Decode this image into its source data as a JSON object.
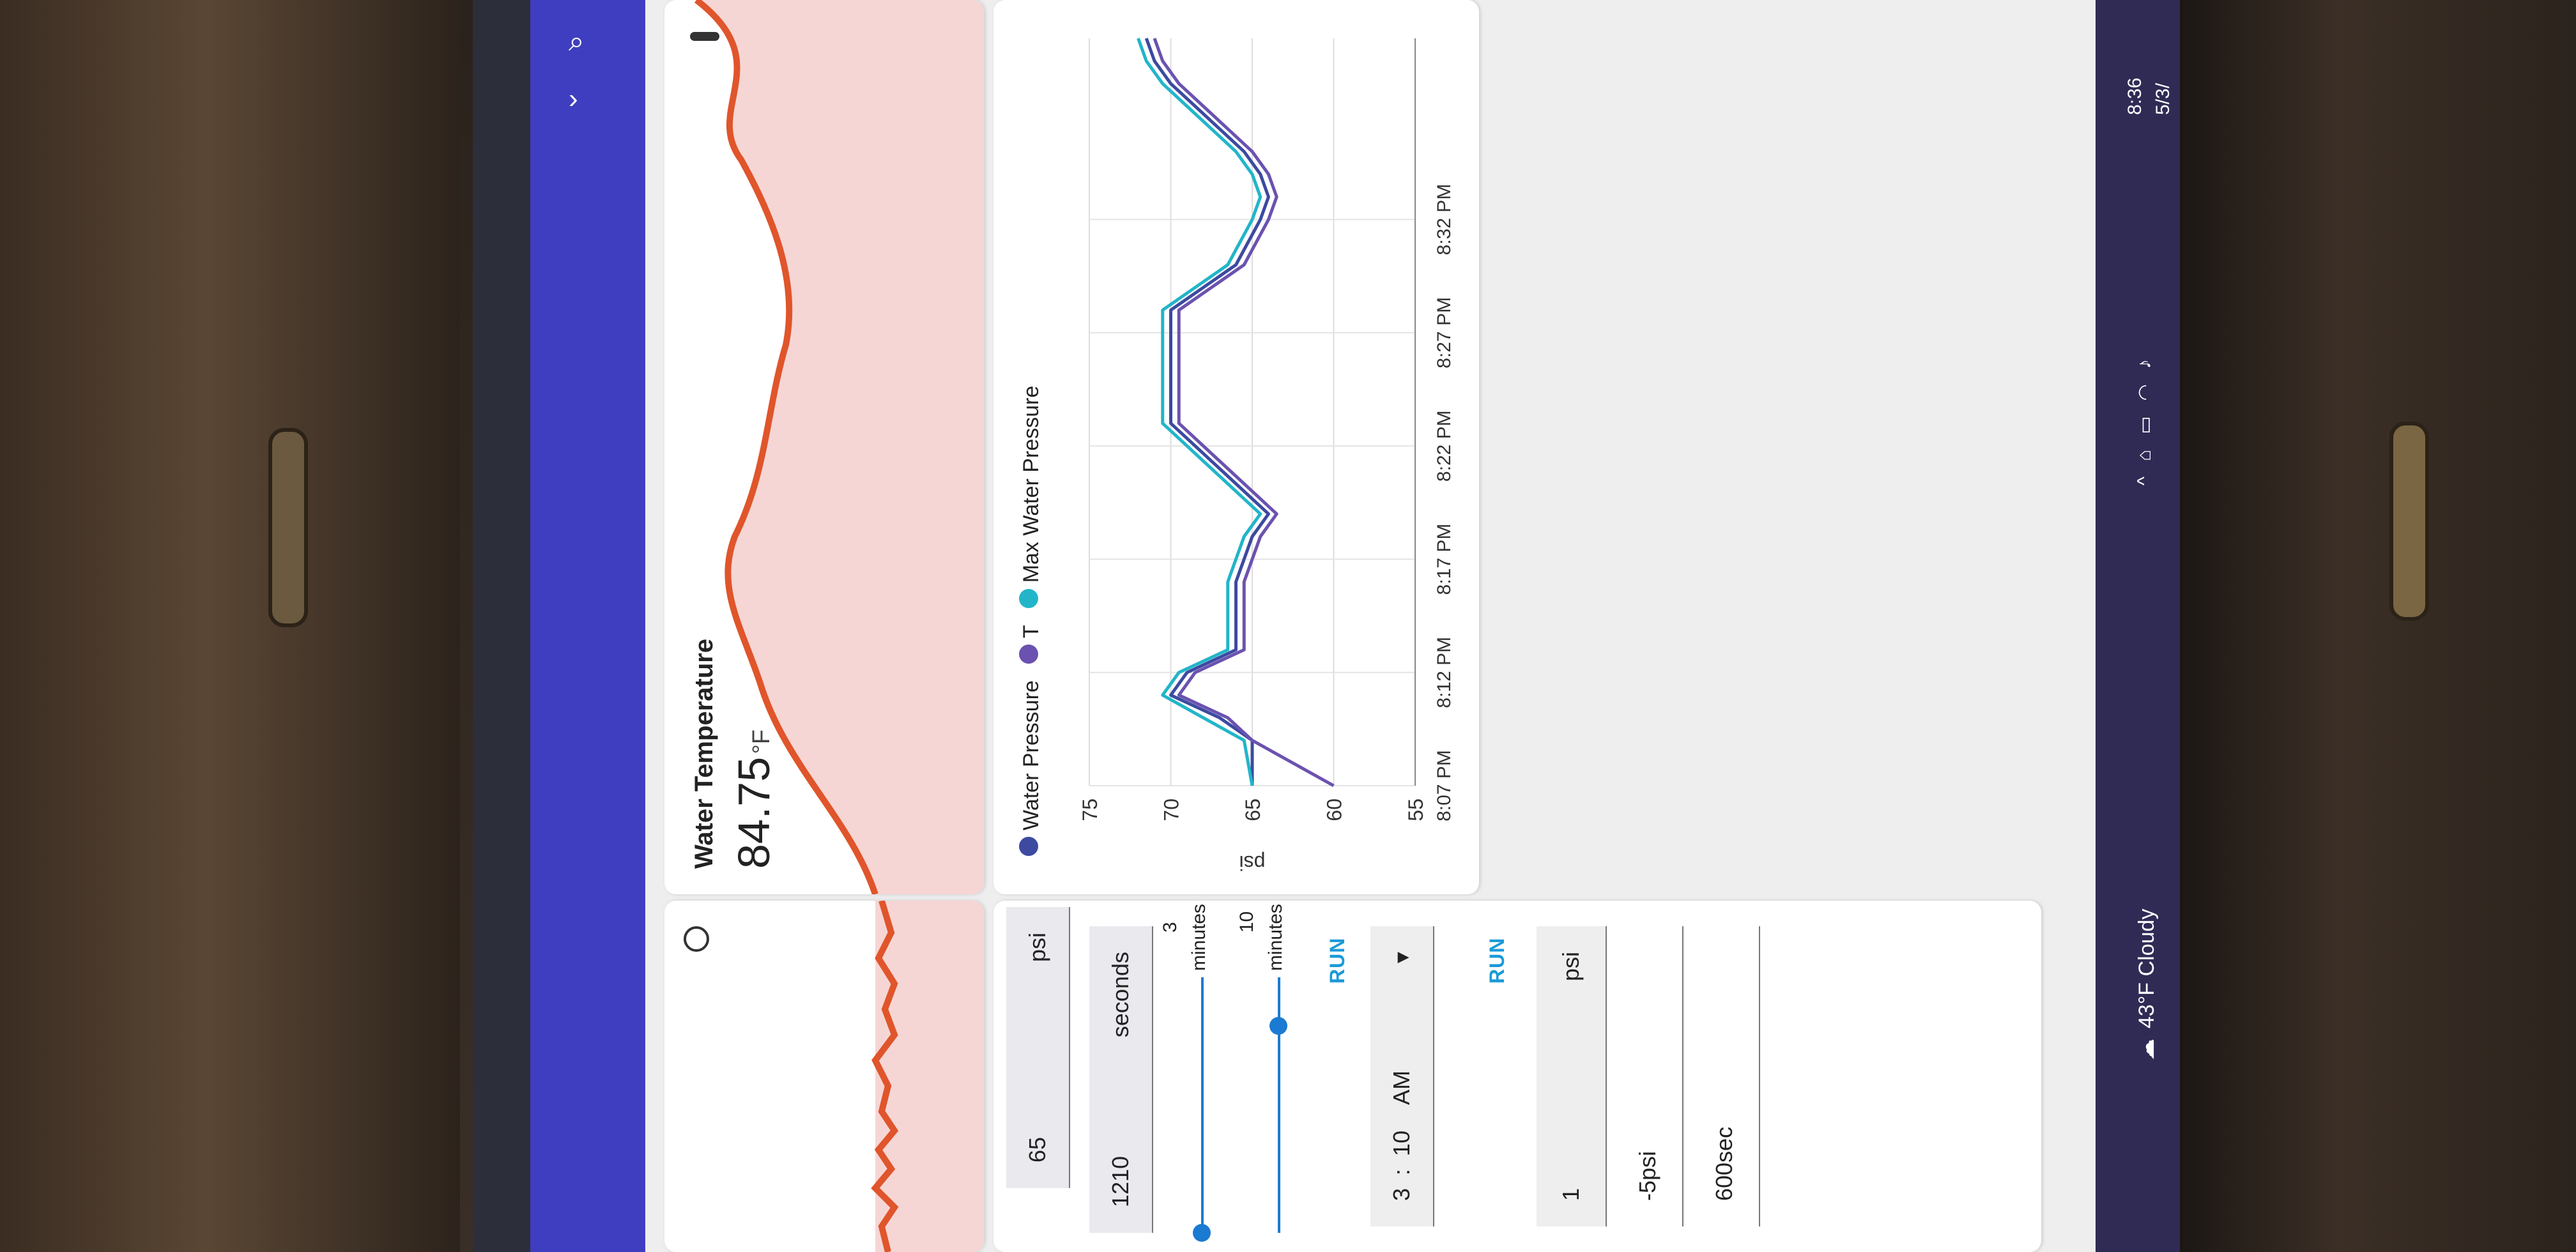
{
  "temperature": {
    "title": "Water Temperature",
    "value": "84.75",
    "unit": "°F",
    "icon": "thermometer-icon"
  },
  "pressure_chart_card": {
    "legend": [
      {
        "name": "Water Pressure",
        "color": "#3c4aa0"
      },
      {
        "name": "T",
        "color": "#6b52b0"
      },
      {
        "name": "Max Water Pressure",
        "color": "#22b5c9"
      }
    ]
  },
  "chart_data": {
    "type": "line",
    "ylabel": "psi",
    "ylim": [
      55,
      75
    ],
    "yticks": [
      55,
      60,
      65,
      70,
      75
    ],
    "xtick_labels": [
      "8:07 PM",
      "8:12 PM",
      "8:17 PM",
      "8:22 PM",
      "8:27 PM",
      "8:32 PM"
    ],
    "x_minutes": [
      0,
      2,
      3,
      4,
      5,
      6,
      7,
      9,
      11,
      12,
      14,
      16,
      18,
      20,
      21,
      22,
      23,
      25,
      26,
      27,
      28,
      29,
      30,
      31,
      32,
      33
    ],
    "series": [
      {
        "name": "Water Pressure",
        "values": [
          65,
          65,
          67,
          70,
          69,
          66,
          66,
          66,
          65,
          64,
          67,
          70,
          70,
          70,
          70,
          68,
          66,
          64.5,
          64,
          64.5,
          65.5,
          67,
          68.5,
          70,
          71,
          71.5
        ]
      },
      {
        "name": "T",
        "values": [
          60,
          65,
          66.5,
          69.5,
          68.5,
          65.5,
          65.5,
          65.5,
          64.5,
          63.5,
          66.5,
          69.5,
          69.5,
          69.5,
          69.5,
          67.5,
          65.5,
          64,
          63.5,
          64,
          65,
          66.5,
          68,
          69.5,
          70.5,
          71
        ]
      },
      {
        "name": "Max Water Pressure",
        "values": [
          65,
          65.5,
          68,
          70.5,
          69.5,
          66.5,
          66.5,
          66.5,
          65.5,
          64.5,
          67.5,
          70.5,
          70.5,
          70.5,
          70.5,
          68.5,
          66.5,
          65,
          64.5,
          65,
          66,
          67.5,
          69,
          70.5,
          71.5,
          72
        ]
      }
    ]
  },
  "controls": {
    "pressure_setpoint": {
      "value": "65",
      "unit": "psi"
    },
    "duration": {
      "value": "1210",
      "unit": "seconds"
    },
    "slider1": {
      "value": "3",
      "unit": "minutes",
      "level": 0.0
    },
    "slider2": {
      "value": "10",
      "unit": "minutes",
      "level": 0.85
    },
    "run1": "RUN",
    "time": {
      "hour": "3",
      "sep": ":",
      "minute": "10",
      "ampm": "AM"
    },
    "run2": "RUN",
    "offset_pos": {
      "value": "1",
      "unit": "psi"
    },
    "offset_neg": {
      "value": "-5",
      "unit": "psi"
    },
    "interval": {
      "value": "600",
      "unit": "sec"
    }
  },
  "taskbar": {
    "weather": "43°F Cloudy",
    "time": "8:36",
    "date": "5/3/"
  }
}
